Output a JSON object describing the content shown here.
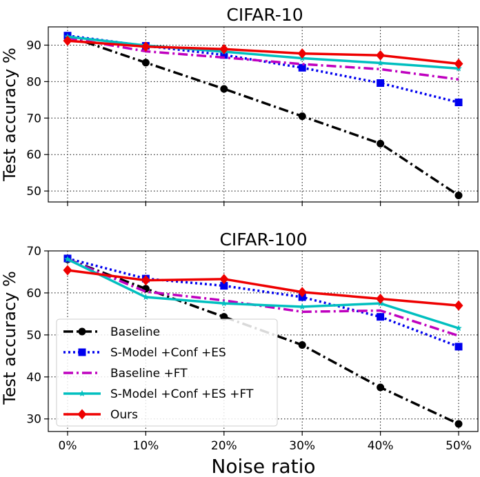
{
  "figure": {
    "xlabel": "Noise ratio",
    "legend": [
      "Baseline",
      "S-Model +Conf +ES",
      "Baseline +FT",
      "S-Model +Conf +ES +FT",
      "Ours"
    ]
  },
  "chart_data": [
    {
      "type": "line",
      "title": "CIFAR-10",
      "xlabel": "",
      "ylabel": "Test accuracy %",
      "categories": [
        "0%",
        "10%",
        "20%",
        "30%",
        "40%",
        "50%"
      ],
      "yticks": [
        50,
        60,
        70,
        80,
        90
      ],
      "ylim": [
        47,
        95
      ],
      "grid": true,
      "legend_position": "none",
      "series": [
        {
          "name": "Baseline",
          "values": [
            92.5,
            85.2,
            78.0,
            70.5,
            63.0,
            48.8
          ],
          "color": "#000000",
          "dash": "dashdot",
          "marker": "circle"
        },
        {
          "name": "S-Model +Conf +ES",
          "values": [
            92.6,
            89.8,
            87.3,
            83.8,
            79.6,
            74.3
          ],
          "color": "#0000ee",
          "dash": "dotted",
          "marker": "square"
        },
        {
          "name": "Baseline +FT",
          "values": [
            92.0,
            88.3,
            86.6,
            84.8,
            83.4,
            80.6
          ],
          "color": "#bf00bf",
          "dash": "dashdot",
          "marker": "none"
        },
        {
          "name": "S-Model +Conf +ES +FT",
          "values": [
            92.3,
            89.9,
            88.2,
            86.4,
            85.1,
            83.6
          ],
          "color": "#00bfbf",
          "dash": "solid",
          "marker": "star"
        },
        {
          "name": "Ours",
          "values": [
            91.2,
            89.6,
            88.9,
            87.7,
            87.2,
            84.9
          ],
          "color": "#ee0000",
          "dash": "solid",
          "marker": "diamond"
        }
      ]
    },
    {
      "type": "line",
      "title": "CIFAR-100",
      "xlabel": "Noise ratio",
      "ylabel": "Test accuracy %",
      "categories": [
        "0%",
        "10%",
        "20%",
        "30%",
        "40%",
        "50%"
      ],
      "yticks": [
        30,
        40,
        50,
        60,
        70
      ],
      "ylim": [
        27,
        70
      ],
      "grid": true,
      "legend_position": "lower-left",
      "series": [
        {
          "name": "Baseline",
          "values": [
            68.0,
            61.0,
            54.3,
            47.6,
            37.5,
            28.8
          ],
          "color": "#000000",
          "dash": "dashdot",
          "marker": "circle"
        },
        {
          "name": "S-Model +Conf +ES",
          "values": [
            68.2,
            63.4,
            61.7,
            59.0,
            54.3,
            47.2
          ],
          "color": "#0000ee",
          "dash": "dotted",
          "marker": "square"
        },
        {
          "name": "Baseline +FT",
          "values": [
            68.0,
            60.3,
            58.2,
            55.5,
            55.8,
            49.8
          ],
          "color": "#bf00bf",
          "dash": "dashdot",
          "marker": "none"
        },
        {
          "name": "S-Model +Conf +ES +FT",
          "values": [
            68.0,
            59.0,
            57.5,
            56.7,
            57.5,
            51.6
          ],
          "color": "#00bfbf",
          "dash": "solid",
          "marker": "star"
        },
        {
          "name": "Ours",
          "values": [
            65.4,
            63.0,
            63.3,
            60.2,
            58.6,
            57.0
          ],
          "color": "#ee0000",
          "dash": "solid",
          "marker": "diamond"
        }
      ]
    }
  ]
}
